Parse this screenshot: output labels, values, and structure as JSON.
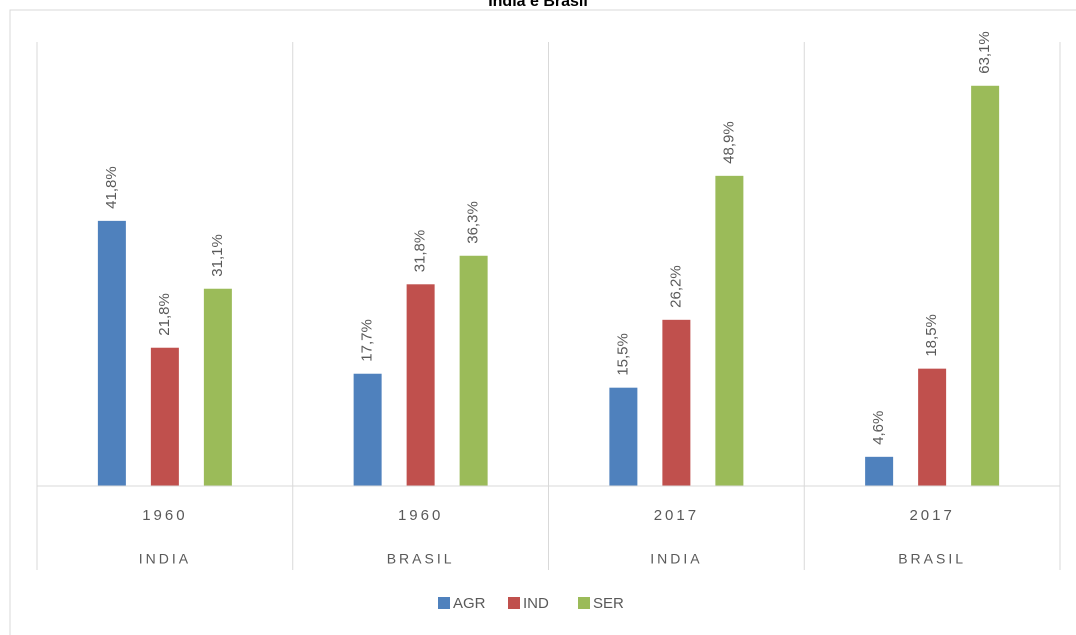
{
  "chart_data": {
    "type": "bar",
    "title": "India e Brasil",
    "categories": [
      "1960",
      "1960",
      "2017",
      "2017"
    ],
    "groups": [
      "INDIA",
      "BRASIL",
      "INDIA",
      "BRASIL"
    ],
    "series": [
      {
        "name": "AGR",
        "color": "#4f81bd",
        "values": [
          41.8,
          17.7,
          15.5,
          4.6
        ],
        "value_labels": [
          "41,8%",
          "17,7%",
          "15,5%",
          "4,6%"
        ]
      },
      {
        "name": "IND",
        "color": "#c0504d",
        "values": [
          21.8,
          31.8,
          26.2,
          18.5
        ],
        "value_labels": [
          "21,8%",
          "31,8%",
          "26,2%",
          "18,5%"
        ]
      },
      {
        "name": "SER",
        "color": "#9bbb59",
        "values": [
          31.1,
          36.3,
          48.9,
          63.1
        ],
        "value_labels": [
          "31,1%",
          "36,3%",
          "48,9%",
          "63,1%"
        ]
      }
    ],
    "ylim": [
      0,
      70
    ],
    "legend": "bottom"
  }
}
